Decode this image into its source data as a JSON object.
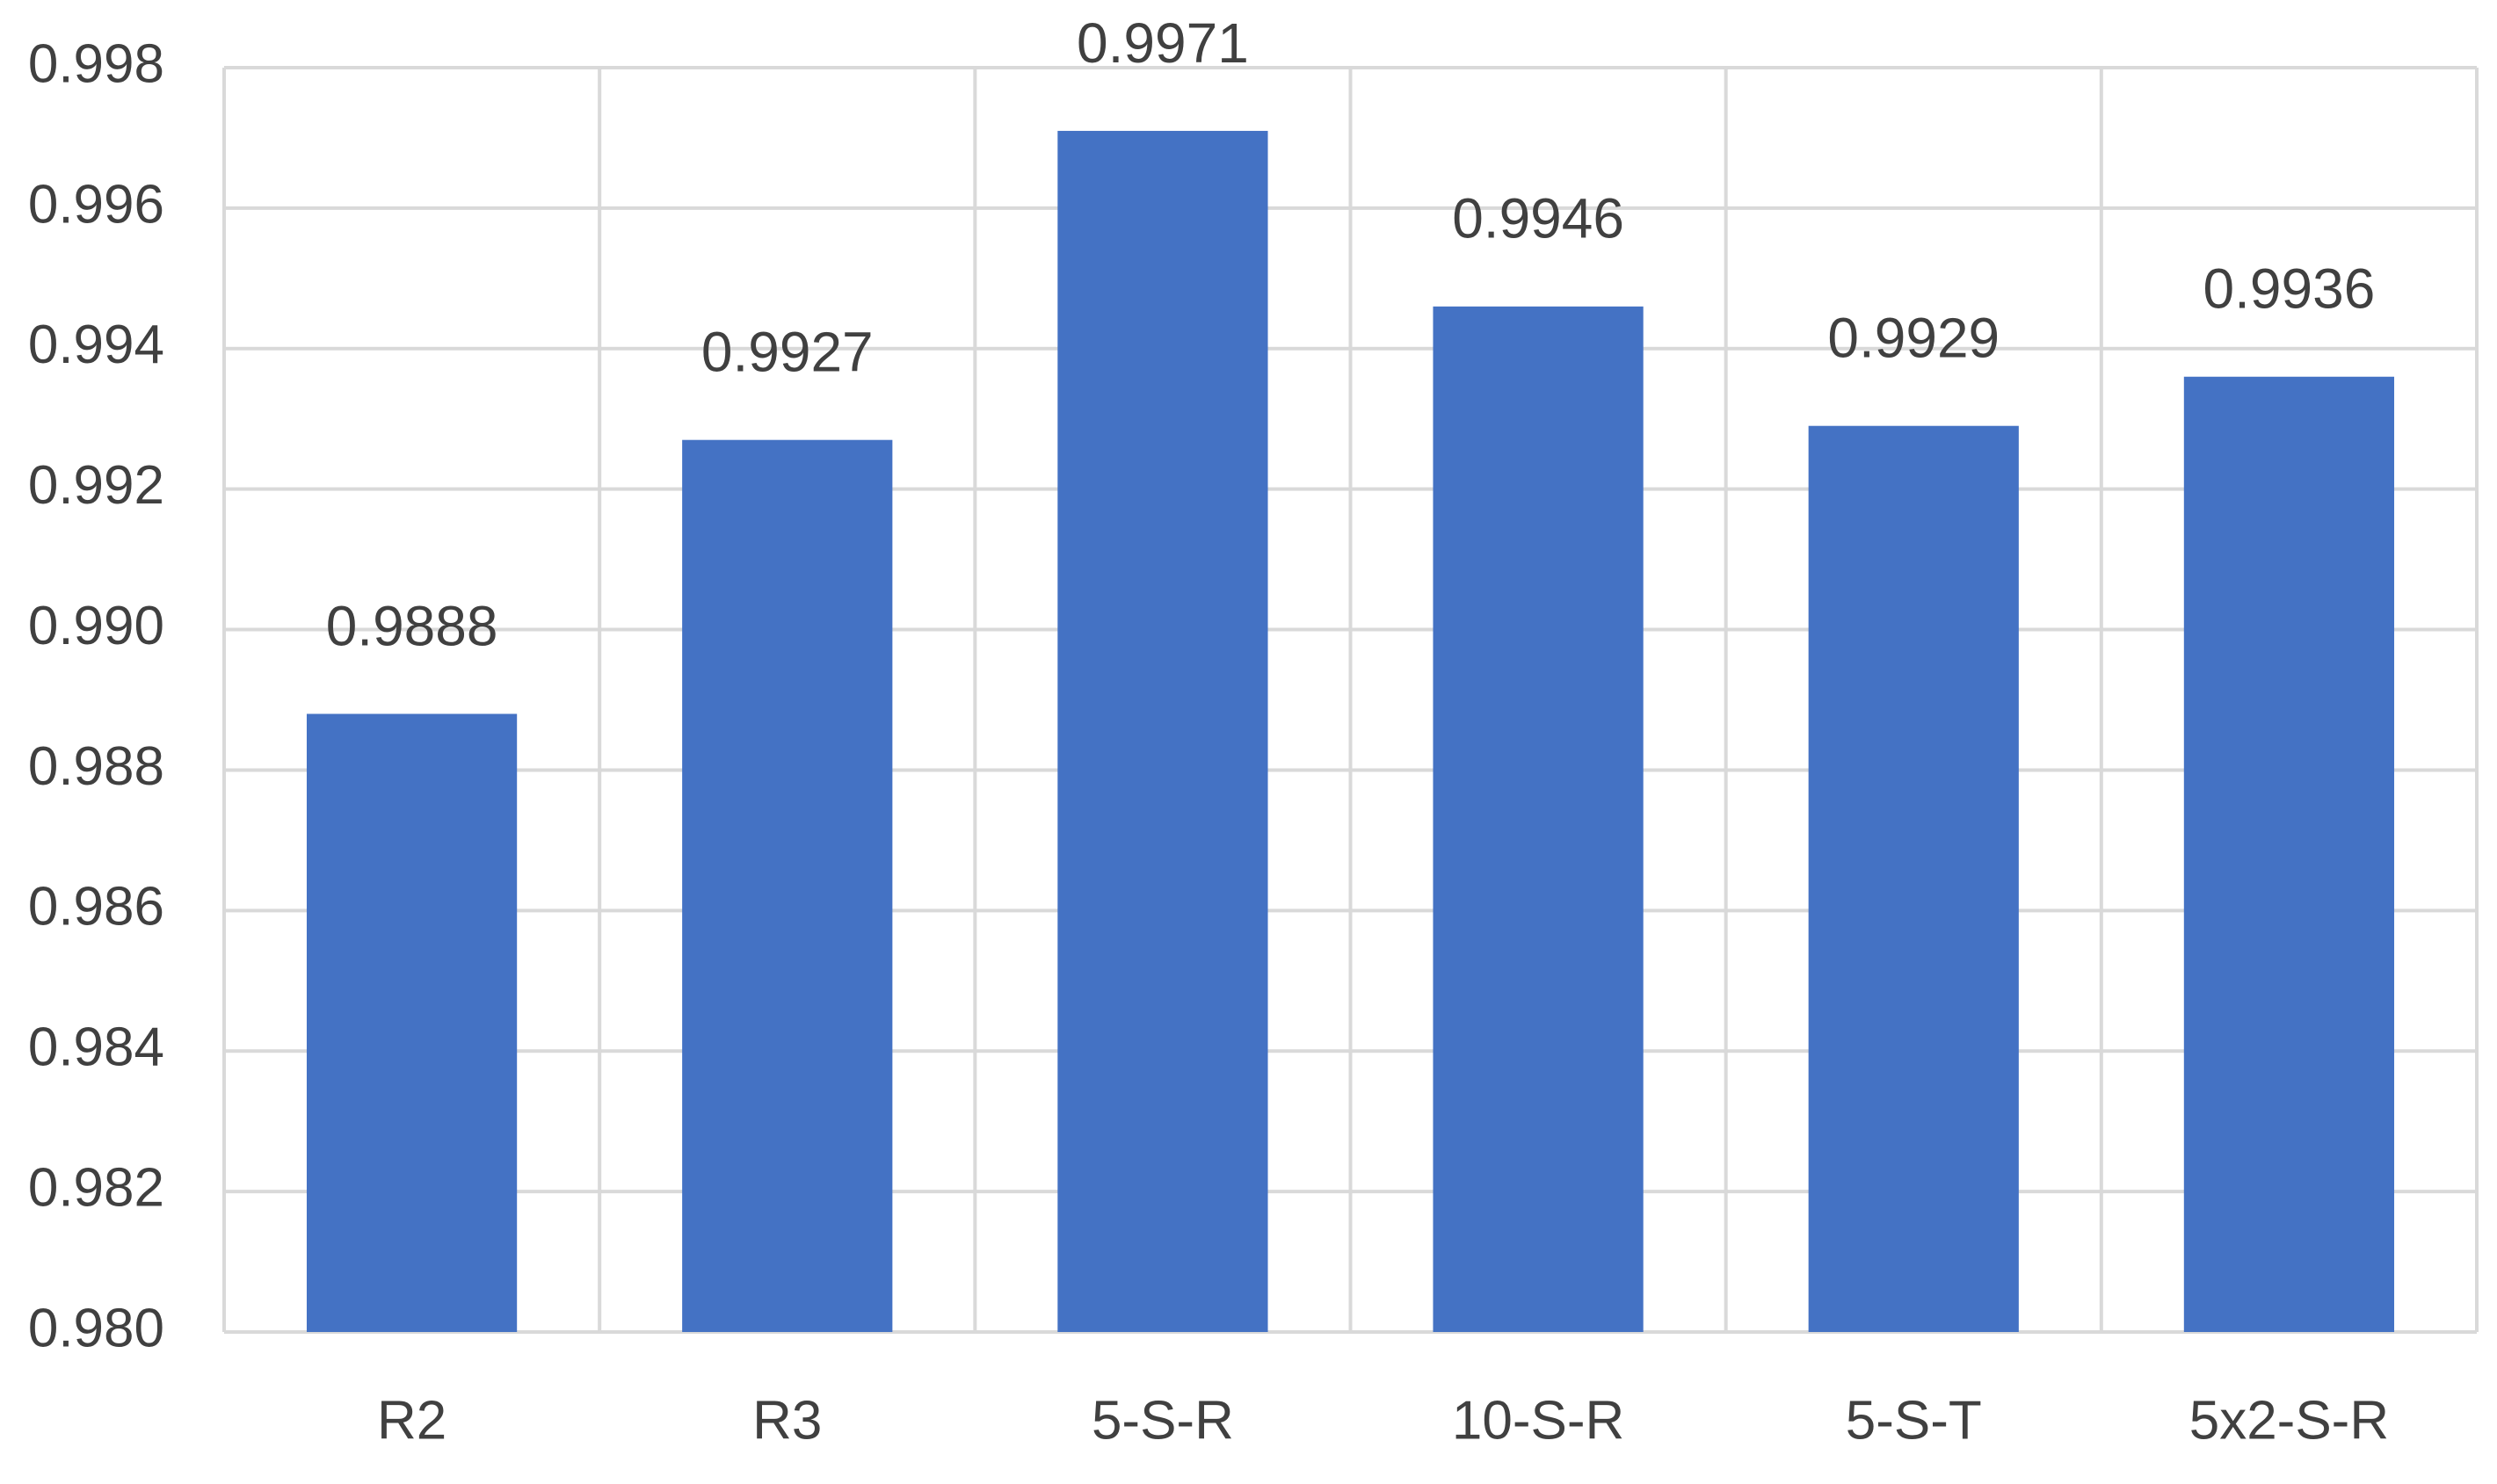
{
  "chart_data": {
    "type": "bar",
    "categories": [
      "R2",
      "R3",
      "5-S-R",
      "10-S-R",
      "5-S-T",
      "5x2-S-R"
    ],
    "values": [
      0.9888,
      0.9927,
      0.9971,
      0.9946,
      0.9929,
      0.9936
    ],
    "color": "#4472c4",
    "ylim": [
      0.98,
      0.998
    ],
    "yticks": [
      {
        "value": 0.98,
        "label": "0.980"
      },
      0.982,
      0.984,
      0.986,
      0.988,
      {
        "value": 0.99,
        "label": "0.990"
      },
      0.992,
      0.994,
      0.996,
      0.998
    ],
    "grid": true
  }
}
